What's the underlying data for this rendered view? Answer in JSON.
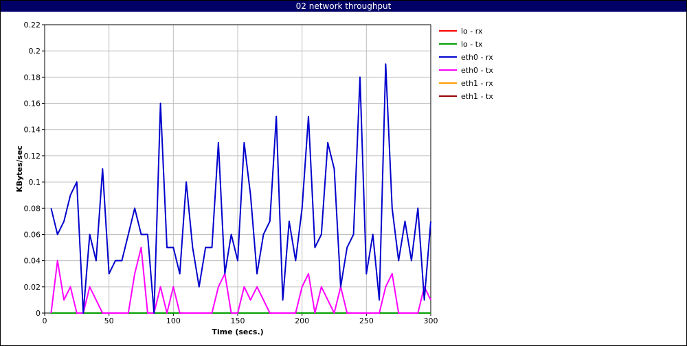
{
  "window": {
    "title": "02 network throughput"
  },
  "chart_data": {
    "type": "line",
    "xlabel": "Time (secs.)",
    "ylabel": "KBytes/sec",
    "xlim": [
      0,
      300
    ],
    "ylim": [
      0,
      0.22
    ],
    "xticks": [
      0,
      50,
      100,
      150,
      200,
      250,
      300
    ],
    "yticks": [
      0,
      0.02,
      0.04,
      0.06,
      0.08,
      0.1,
      0.12,
      0.14,
      0.16,
      0.18,
      0.2,
      0.22
    ],
    "grid": true,
    "legend_position": "right",
    "x": [
      5,
      10,
      15,
      20,
      25,
      30,
      35,
      40,
      45,
      50,
      55,
      60,
      65,
      70,
      75,
      80,
      85,
      90,
      95,
      100,
      105,
      110,
      115,
      120,
      125,
      130,
      135,
      140,
      145,
      150,
      155,
      160,
      165,
      170,
      175,
      180,
      185,
      190,
      195,
      200,
      205,
      210,
      215,
      220,
      225,
      230,
      235,
      240,
      245,
      250,
      255,
      260,
      265,
      270,
      275,
      280,
      285,
      290,
      295,
      300
    ],
    "series": [
      {
        "name": "lo - rx",
        "color": "#ff0000",
        "values": [
          0,
          0,
          0,
          0,
          0,
          0,
          0,
          0,
          0,
          0,
          0,
          0,
          0,
          0,
          0,
          0,
          0,
          0,
          0,
          0,
          0,
          0,
          0,
          0,
          0,
          0,
          0,
          0,
          0,
          0,
          0,
          0,
          0,
          0,
          0,
          0,
          0,
          0,
          0,
          0,
          0,
          0,
          0,
          0,
          0,
          0,
          0,
          0,
          0,
          0,
          0,
          0,
          0,
          0,
          0,
          0,
          0,
          0,
          0,
          0
        ]
      },
      {
        "name": "lo - tx",
        "color": "#00a000",
        "values": [
          0,
          0,
          0,
          0,
          0,
          0,
          0,
          0,
          0,
          0,
          0,
          0,
          0,
          0,
          0,
          0,
          0,
          0,
          0,
          0,
          0,
          0,
          0,
          0,
          0,
          0,
          0,
          0,
          0,
          0,
          0,
          0,
          0,
          0,
          0,
          0,
          0,
          0,
          0,
          0,
          0,
          0,
          0,
          0,
          0,
          0,
          0,
          0,
          0,
          0,
          0,
          0,
          0,
          0,
          0,
          0,
          0,
          0,
          0,
          0
        ]
      },
      {
        "name": "eth0 - rx",
        "color": "#0000cc",
        "values": [
          0.08,
          0.06,
          0.07,
          0.09,
          0.1,
          0.0,
          0.06,
          0.04,
          0.11,
          0.03,
          0.04,
          0.04,
          0.06,
          0.08,
          0.06,
          0.06,
          0.0,
          0.16,
          0.05,
          0.05,
          0.03,
          0.1,
          0.05,
          0.02,
          0.05,
          0.05,
          0.13,
          0.03,
          0.06,
          0.04,
          0.13,
          0.09,
          0.03,
          0.06,
          0.07,
          0.15,
          0.01,
          0.07,
          0.04,
          0.08,
          0.15,
          0.05,
          0.06,
          0.13,
          0.11,
          0.02,
          0.05,
          0.06,
          0.18,
          0.03,
          0.06,
          0.01,
          0.19,
          0.08,
          0.04,
          0.07,
          0.04,
          0.08,
          0.01,
          0.07
        ]
      },
      {
        "name": "eth0 - tx",
        "color": "#ff00ff",
        "values": [
          0.0,
          0.04,
          0.01,
          0.02,
          0.0,
          0.0,
          0.02,
          0.01,
          0.0,
          0.0,
          0.0,
          0.0,
          0.0,
          0.03,
          0.05,
          0.0,
          0.0,
          0.02,
          0.0,
          0.02,
          0.0,
          0.0,
          0.0,
          0.0,
          0.0,
          0.0,
          0.02,
          0.03,
          0.0,
          0.0,
          0.02,
          0.01,
          0.02,
          0.01,
          0.0,
          0.0,
          0.0,
          0.0,
          0.0,
          0.02,
          0.03,
          0.0,
          0.02,
          0.01,
          0.0,
          0.02,
          0.0,
          0.0,
          0.0,
          0.0,
          0.0,
          0.0,
          0.02,
          0.03,
          0.0,
          0.0,
          0.0,
          0.0,
          0.02,
          0.01
        ]
      },
      {
        "name": "eth1 - rx",
        "color": "#ff9900",
        "values": [
          0,
          0,
          0,
          0,
          0,
          0,
          0,
          0,
          0,
          0,
          0,
          0,
          0,
          0,
          0,
          0,
          0,
          0,
          0,
          0,
          0,
          0,
          0,
          0,
          0,
          0,
          0,
          0,
          0,
          0,
          0,
          0,
          0,
          0,
          0,
          0,
          0,
          0,
          0,
          0,
          0,
          0,
          0,
          0,
          0,
          0,
          0,
          0,
          0,
          0,
          0,
          0,
          0,
          0,
          0,
          0,
          0,
          0,
          0,
          0
        ]
      },
      {
        "name": "eth1 - tx",
        "color": "#990000",
        "values": [
          0,
          0,
          0,
          0,
          0,
          0,
          0,
          0,
          0,
          0,
          0,
          0,
          0,
          0,
          0,
          0,
          0,
          0,
          0,
          0,
          0,
          0,
          0,
          0,
          0,
          0,
          0,
          0,
          0,
          0,
          0,
          0,
          0,
          0,
          0,
          0,
          0,
          0,
          0,
          0,
          0,
          0,
          0,
          0,
          0,
          0,
          0,
          0,
          0,
          0,
          0,
          0,
          0,
          0,
          0,
          0,
          0,
          0,
          0,
          0
        ]
      }
    ]
  }
}
